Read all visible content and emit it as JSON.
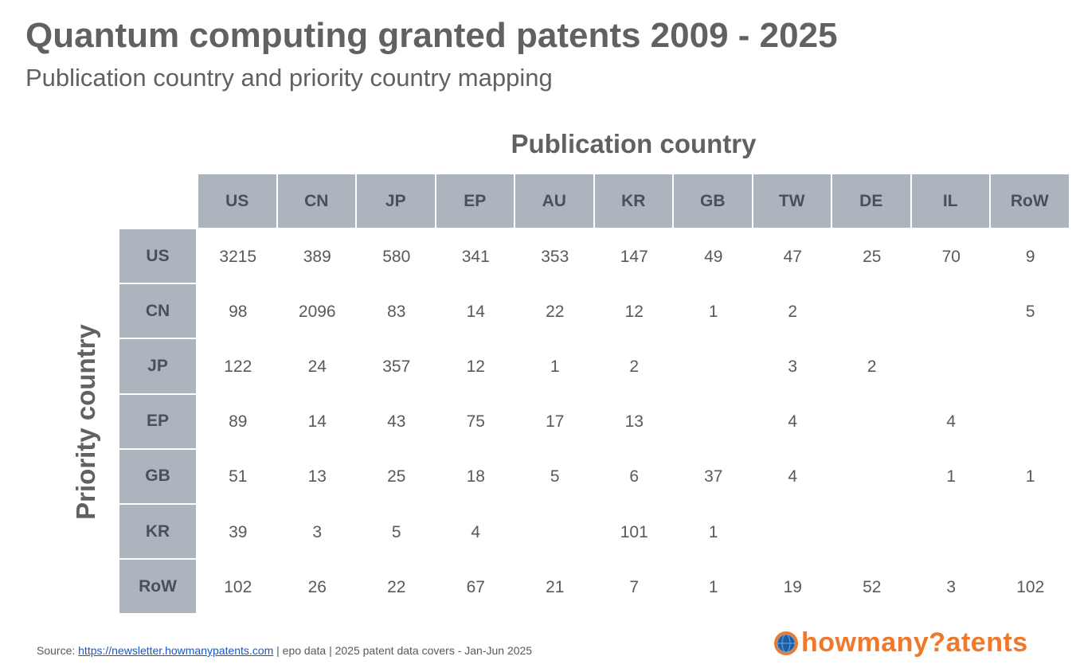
{
  "title": "Quantum computing granted patents 2009 - 2025",
  "subtitle": "Publication country and priority country mapping",
  "chart_data": {
    "type": "table",
    "col_axis_label": "Publication country",
    "row_axis_label": "Priority country",
    "columns": [
      "US",
      "CN",
      "JP",
      "EP",
      "AU",
      "KR",
      "GB",
      "TW",
      "DE",
      "IL",
      "RoW"
    ],
    "rows": [
      {
        "label": "US",
        "values": [
          "3215",
          "389",
          "580",
          "341",
          "353",
          "147",
          "49",
          "47",
          "25",
          "70",
          "9"
        ]
      },
      {
        "label": "CN",
        "values": [
          "98",
          "2096",
          "83",
          "14",
          "22",
          "12",
          "1",
          "2",
          "",
          "",
          "5"
        ]
      },
      {
        "label": "JP",
        "values": [
          "122",
          "24",
          "357",
          "12",
          "1",
          "2",
          "",
          "3",
          "2",
          "",
          ""
        ]
      },
      {
        "label": "EP",
        "values": [
          "89",
          "14",
          "43",
          "75",
          "17",
          "13",
          "",
          "4",
          "",
          "4",
          ""
        ]
      },
      {
        "label": "GB",
        "values": [
          "51",
          "13",
          "25",
          "18",
          "5",
          "6",
          "37",
          "4",
          "",
          "1",
          "1"
        ]
      },
      {
        "label": "KR",
        "values": [
          "39",
          "3",
          "5",
          "4",
          "",
          "101",
          "1",
          "",
          "",
          "",
          ""
        ]
      },
      {
        "label": "RoW",
        "values": [
          "102",
          "26",
          "22",
          "67",
          "21",
          "7",
          "1",
          "19",
          "52",
          "3",
          "102"
        ]
      }
    ],
    "header_color": "#acb4be"
  },
  "footer": {
    "prefix": "Source: ",
    "link_text": "https://newsletter.howmanypatents.com",
    "suffix": " | epo data | 2025 patent data covers - Jan-Jun 2025"
  },
  "logo": {
    "text": "howmany?atents",
    "icon": "globe-icon"
  }
}
